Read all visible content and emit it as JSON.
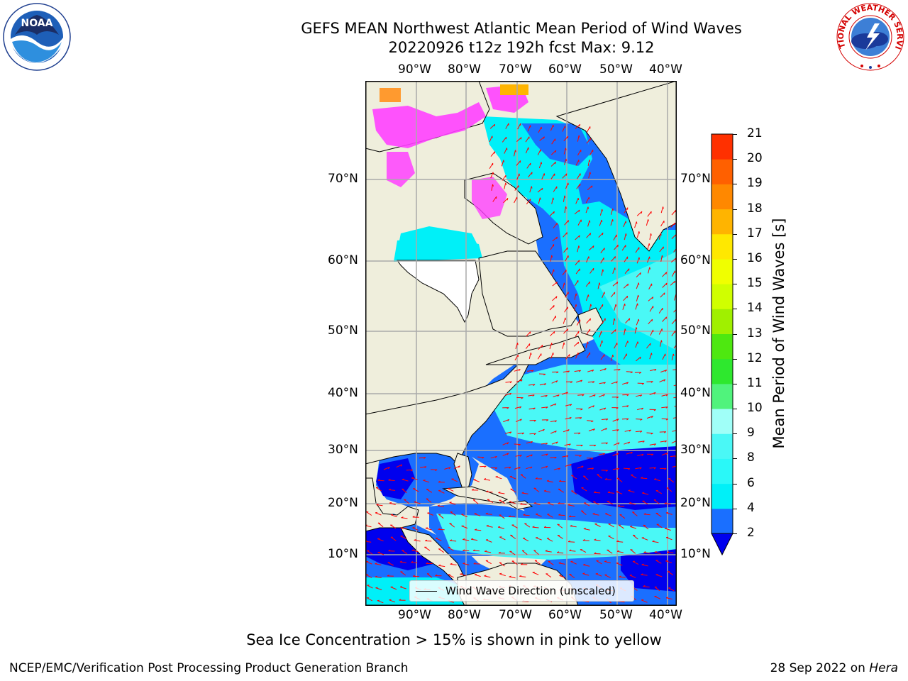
{
  "title": {
    "line1": "GEFS MEAN Northwest Atlantic Mean Period of Wind Waves",
    "line2": "20220926 t12z 192h fcst   Max: 9.12"
  },
  "map": {
    "lon_labels": [
      "90°W",
      "80°W",
      "70°W",
      "60°W",
      "50°W",
      "40°W"
    ],
    "lat_labels": [
      "70°N",
      "60°N",
      "50°N",
      "40°N",
      "30°N",
      "20°N",
      "10°N"
    ],
    "legend_label": "Wind Wave Direction (unscaled)",
    "colors": {
      "land": "#efeedc",
      "ocean_dark": "#0000ee",
      "ocean_mid": "#1a6fff",
      "ocean_cyan": "#00f0f8",
      "ocean_light": "#4af8f6",
      "ice": "#ff40ff",
      "arrow": "#ff0000"
    }
  },
  "colorbar": {
    "title": "Mean Period of Wind Waves [s]",
    "ticks": [
      "2",
      "4",
      "6",
      "8",
      "9",
      "10",
      "11",
      "12",
      "13",
      "14",
      "15",
      "16",
      "17",
      "18",
      "19",
      "20",
      "21"
    ],
    "colors": [
      "#1a6fff",
      "#00f0f8",
      "#2af8f8",
      "#4af8f6",
      "#a0fff8",
      "#50f37c",
      "#2ee82e",
      "#4ee810",
      "#a0f000",
      "#d0ff00",
      "#f0ff00",
      "#ffe800",
      "#ffb400",
      "#ff8800",
      "#ff6000",
      "#ff3000",
      "#ff0000"
    ],
    "under_color": "#0000ee"
  },
  "footer": {
    "note": "Sea Ice Concentration > 15% is shown in pink to yellow",
    "left": "NCEP/EMC/Verification Post Processing Product Generation Branch",
    "right_date": "28 Sep 2022 on",
    "right_host": "Hera"
  },
  "logos": {
    "noaa_text": "NOAA",
    "nws_text": "NATIONAL WEATHER SERVICE"
  }
}
